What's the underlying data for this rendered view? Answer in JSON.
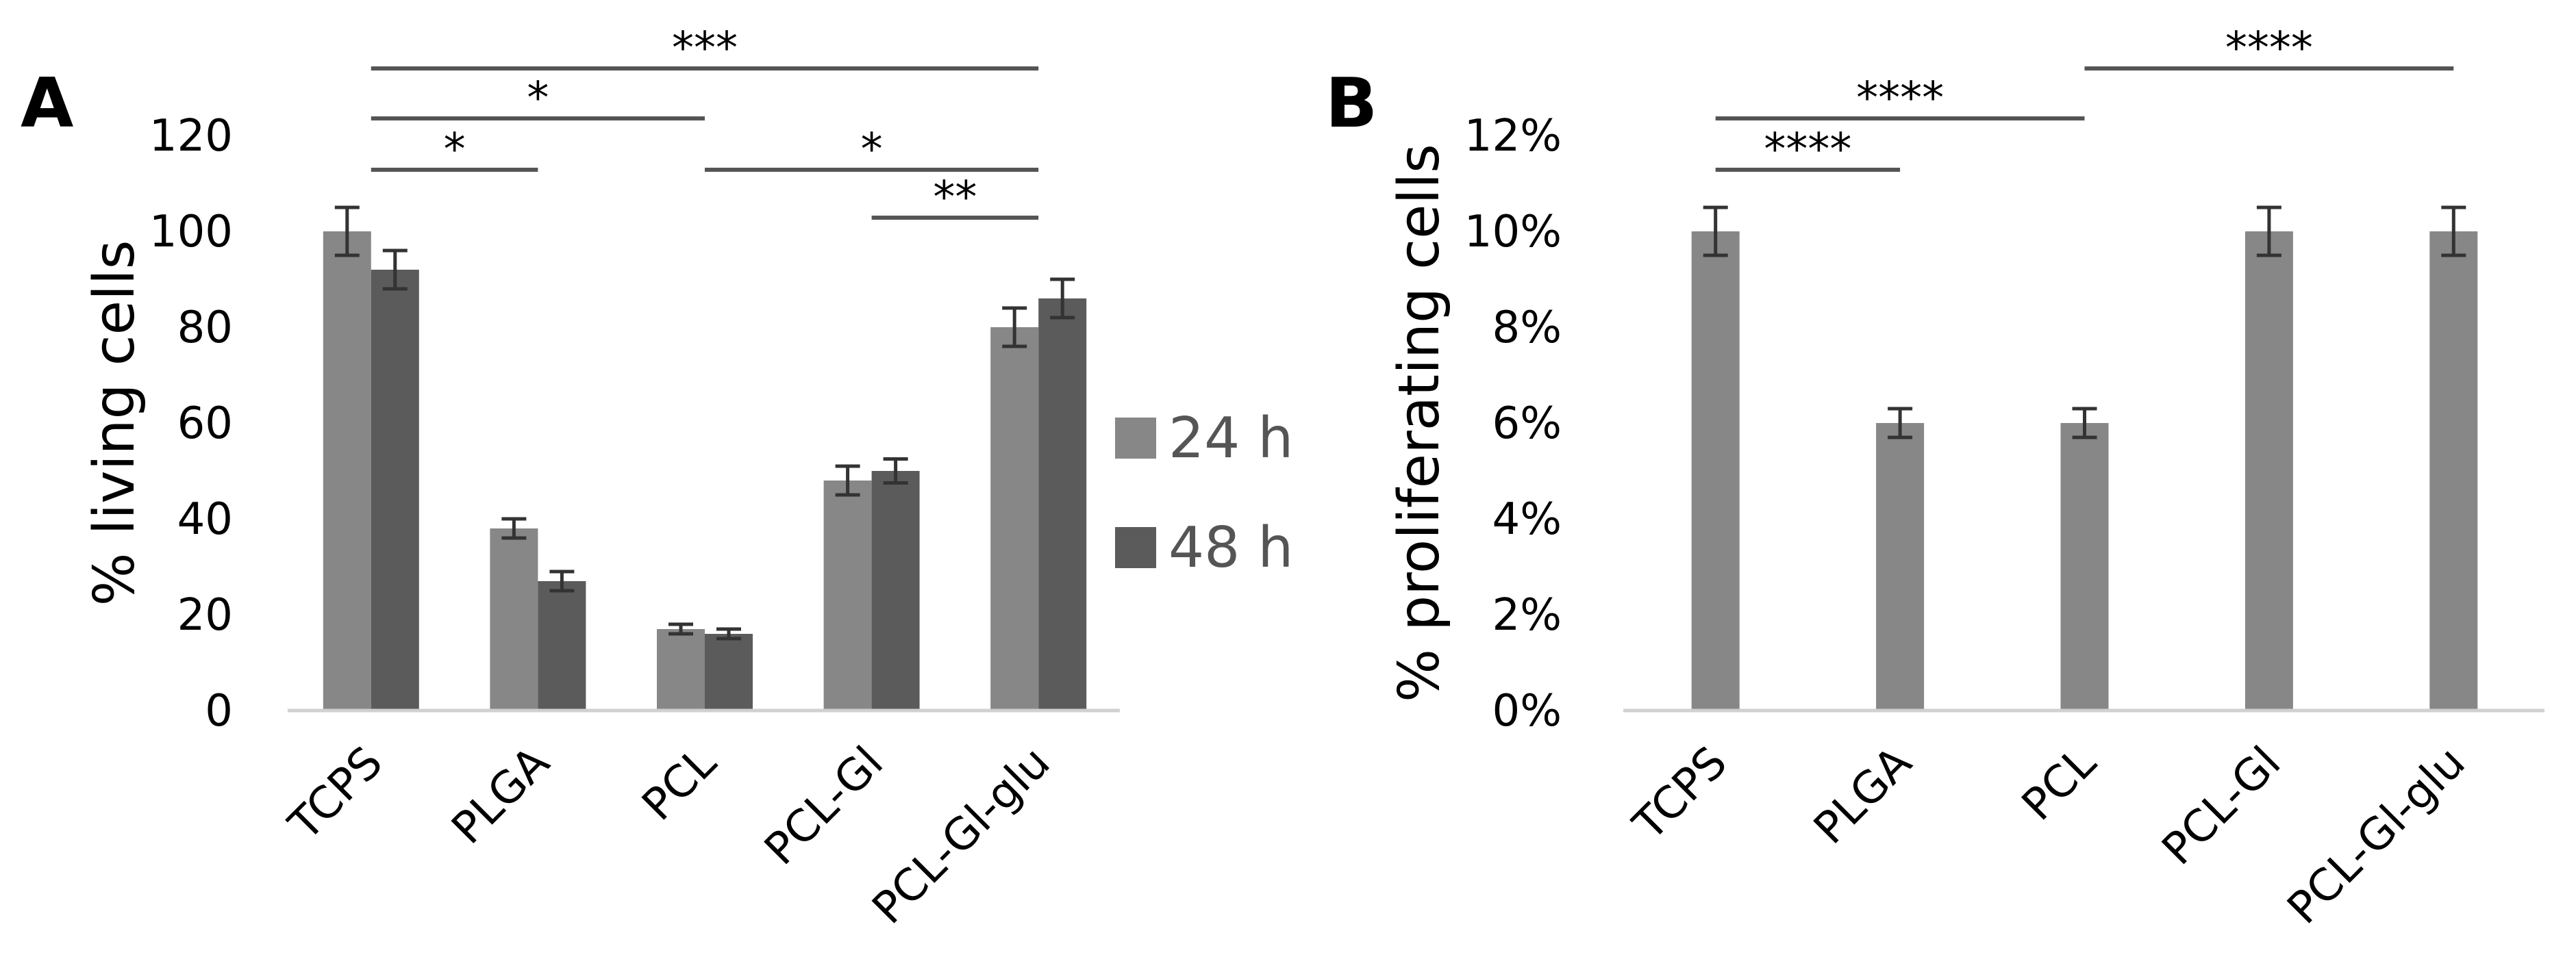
{
  "chart_data": [
    {
      "panel": "A",
      "type": "bar",
      "ylabel": "% living cells",
      "ylim": [
        0,
        120
      ],
      "yticks": [
        0,
        20,
        40,
        60,
        80,
        100,
        120
      ],
      "categories": [
        "TCPS",
        "PLGA",
        "PCL",
        "PCL-Gl",
        "PCL-Gl-glu"
      ],
      "series": [
        {
          "name": "24 h",
          "values": [
            100,
            38,
            17,
            48,
            80
          ],
          "errors": [
            5,
            2,
            1,
            3,
            4
          ],
          "color": "#878787"
        },
        {
          "name": "48 h",
          "values": [
            92,
            27,
            16,
            50,
            86
          ],
          "errors": [
            4,
            2,
            1,
            2.5,
            4
          ],
          "color": "#5b5b5b"
        }
      ],
      "significance": [
        {
          "from": 0,
          "to": 1,
          "label": "*"
        },
        {
          "from": 0,
          "to": 2,
          "label": "*"
        },
        {
          "from": 0,
          "to": 4,
          "label": "***"
        },
        {
          "from": 2,
          "to": 4,
          "label": "*"
        },
        {
          "from": 3,
          "to": 4,
          "label": "**"
        }
      ],
      "legend": "right"
    },
    {
      "panel": "B",
      "type": "bar",
      "ylabel": "% proliferating cells",
      "ylim": [
        0,
        12
      ],
      "yticks": [
        "0%",
        "2%",
        "4%",
        "6%",
        "8%",
        "10%",
        "12%"
      ],
      "categories": [
        "TCPS",
        "PLGA",
        "PCL",
        "PCL-Gl",
        "PCL-Gl-glu"
      ],
      "series": [
        {
          "name": "",
          "values": [
            10,
            6,
            6,
            10,
            10
          ],
          "errors": [
            0.5,
            0.3,
            0.3,
            0.5,
            0.5
          ],
          "color": "#878787"
        }
      ],
      "significance": [
        {
          "from": 0,
          "to": 1,
          "label": "****"
        },
        {
          "from": 0,
          "to": 2,
          "label": "****"
        },
        {
          "from": 2,
          "to": 4,
          "label": "****"
        }
      ]
    }
  ]
}
